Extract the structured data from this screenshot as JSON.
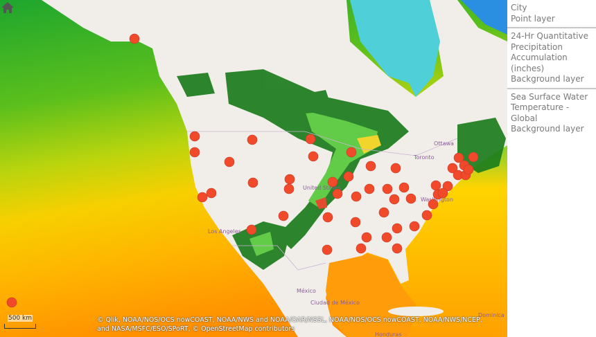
{
  "legend": {
    "items": [
      {
        "title": "City",
        "subtitle": "Point layer"
      },
      {
        "title": "24-Hr Quantitative Precipitation Accumulation (inches)",
        "subtitle": "Background layer"
      },
      {
        "title": "Sea Surface Water Temperature - Global",
        "subtitle": "Background layer"
      }
    ]
  },
  "map": {
    "labels": {
      "us": "United States",
      "ottawa": "Ottawa",
      "toronto": "Toronto",
      "washington": "Washington",
      "la": "Los Angeles",
      "mexico": "México",
      "mexico_city": "Ciudad de México",
      "honduras": "Honduras",
      "dominica": "Dominica"
    },
    "home_icon": "home-icon",
    "scale_label": "500 km",
    "attribution": "© Qlik, NOAA/NOS/OCS nowCOAST, NOAA/NWS and NOAA/OAR/NSSL, NOAA/NOS/OCS nowCOAST, NOAA/NWS/NCEP, and NASA/MSFC/ESO/SPoRT, © OpenStreetMap contributors",
    "colors": {
      "city_point": "#f04a2a",
      "land": "#f1eee9",
      "precip_low": "#1a7a1a",
      "precip_mid": "#56c93a",
      "precip_high": "#f2d21c",
      "sst_cold": "#2aa52a",
      "sst_warm": "#ff9a00"
    }
  }
}
